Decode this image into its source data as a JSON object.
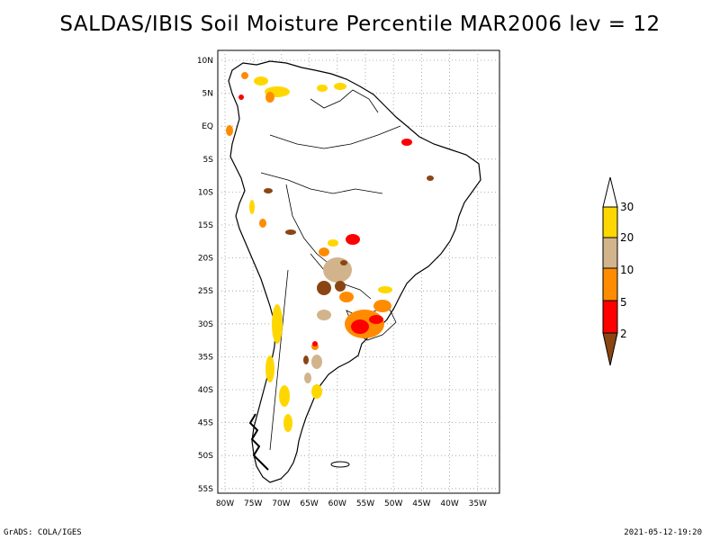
{
  "title": "SALDAS/IBIS Soil Moisture Percentile MAR2006 lev = 12",
  "lat_ticks": [
    "10N",
    "5N",
    "EQ",
    "5S",
    "10S",
    "15S",
    "20S",
    "25S",
    "30S",
    "35S",
    "40S",
    "45S",
    "50S",
    "55S"
  ],
  "lon_ticks": [
    "80W",
    "75W",
    "70W",
    "65W",
    "60W",
    "55W",
    "50W",
    "45W",
    "40W",
    "35W"
  ],
  "legend": {
    "labels": [
      "2",
      "5",
      "10",
      "20",
      "30"
    ],
    "colors": {
      "below_2": "#8b4513",
      "2_5": "#ff0000",
      "5_10": "#ff8c00",
      "10_20": "#d2b48c",
      "20_30": "#ffd700",
      "above_30": "#ffffff"
    }
  },
  "footer": {
    "left": "GrADS: COLA/IGES",
    "right": "2021-05-12-19:20"
  }
}
